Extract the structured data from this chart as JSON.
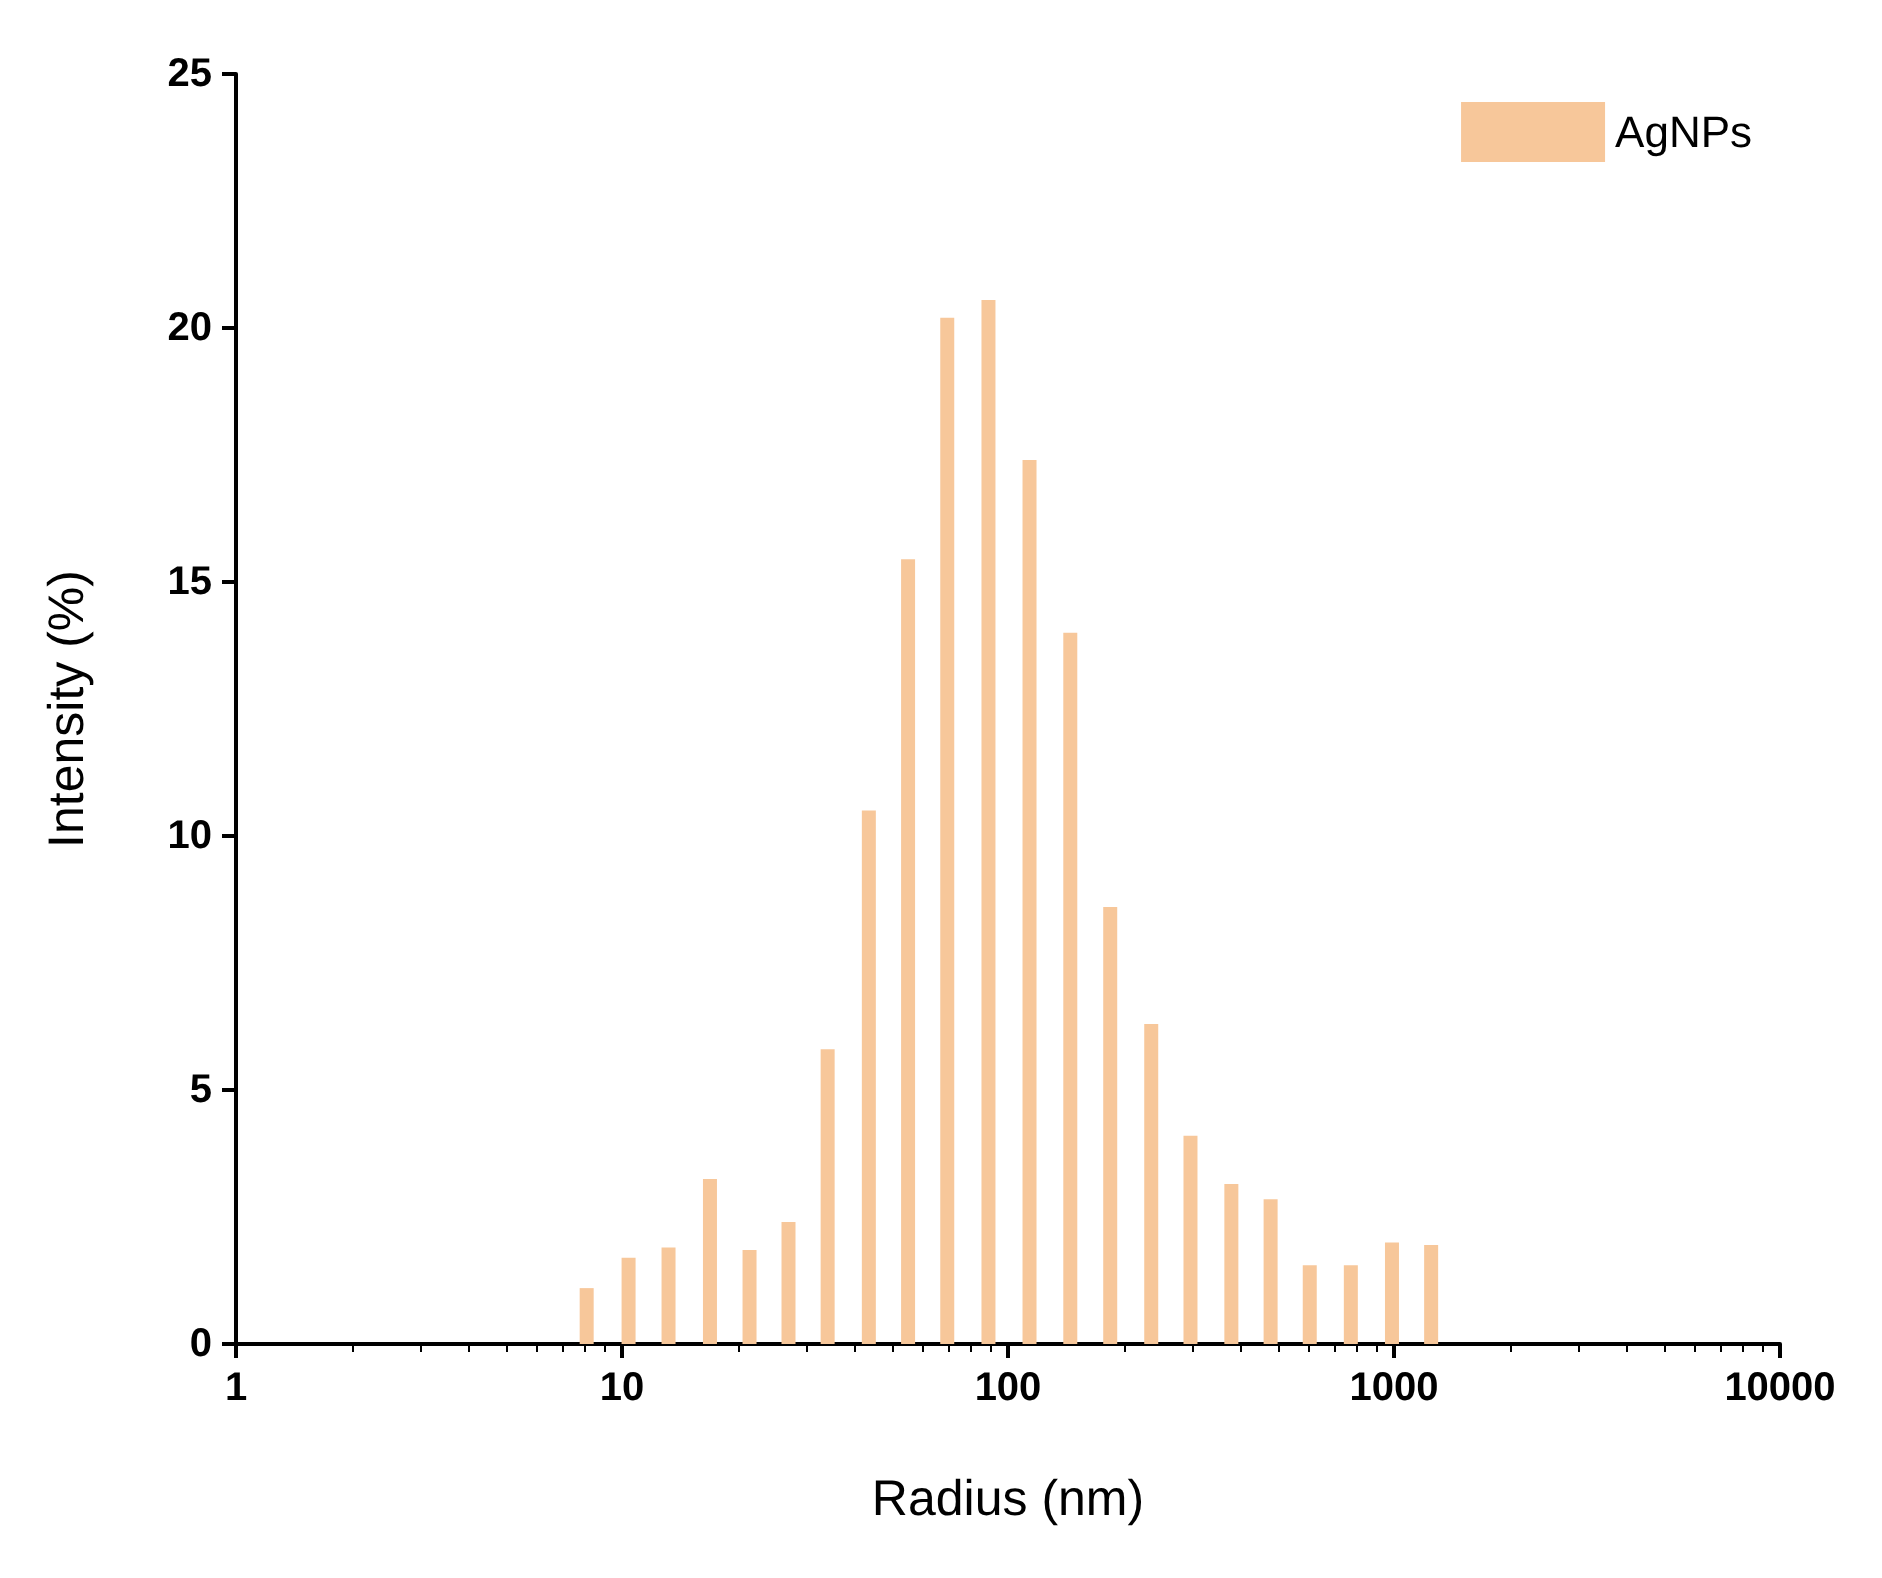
{
  "chart_data": {
    "type": "bar",
    "xlabel": "Radius (nm)",
    "ylabel": "Intensity (%)",
    "log": "x",
    "xlim": [
      1,
      10000
    ],
    "xticks": [
      1,
      10,
      100,
      1000,
      10000
    ],
    "ylim": [
      0,
      25
    ],
    "yticks": [
      0,
      5,
      10,
      15,
      20,
      25
    ],
    "grid": false,
    "legend": "top right",
    "x": [
      8.1,
      10.4,
      13.2,
      16.9,
      21.4,
      27.0,
      34.1,
      43.6,
      55.1,
      69.6,
      89.0,
      113.7,
      145,
      184,
      235,
      297,
      379,
      479,
      605,
      773,
      988,
      1248
    ],
    "series": [
      {
        "name": "AgNPs",
        "color": "#f7c79a",
        "values": [
          1.1,
          1.7,
          1.9,
          3.25,
          1.85,
          2.4,
          5.8,
          10.5,
          15.45,
          20.2,
          20.55,
          17.4,
          14.0,
          8.6,
          6.3,
          4.1,
          3.15,
          2.85,
          1.55,
          1.55,
          2.0,
          1.95
        ]
      }
    ]
  }
}
